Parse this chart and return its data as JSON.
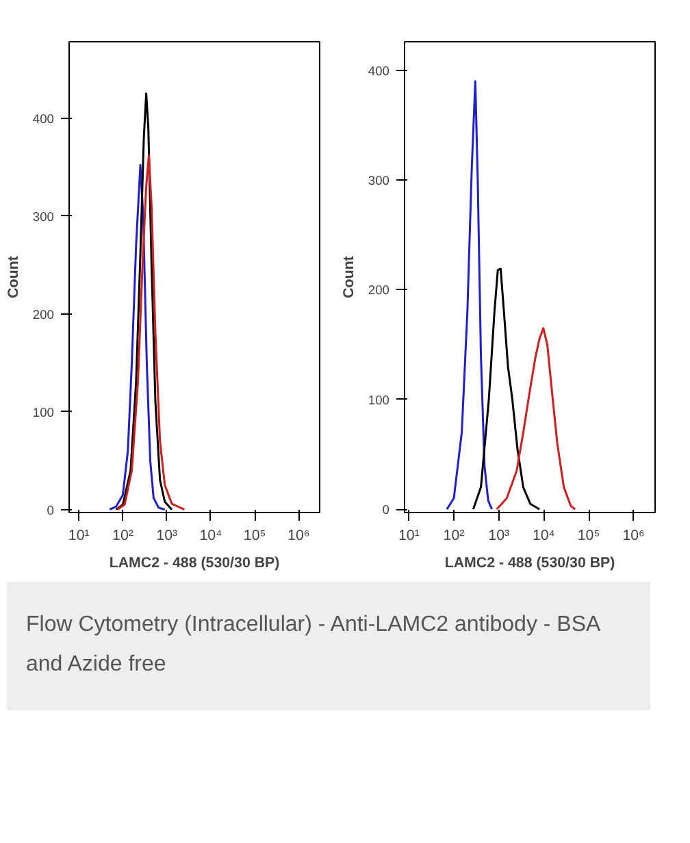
{
  "chart_data": [
    {
      "type": "line",
      "xlabel": "LAMC2 - 488 (530/30 BP)",
      "ylabel": "Count",
      "log": "x",
      "xlim": [
        6,
        3000000
      ],
      "ylim": [
        -3,
        478
      ],
      "xticks": [
        {
          "value": 10,
          "label": "10¹"
        },
        {
          "value": 100,
          "label": "10²"
        },
        {
          "value": 1000,
          "label": "10³"
        },
        {
          "value": 10000,
          "label": "10⁴"
        },
        {
          "value": 100000,
          "label": "10⁵"
        },
        {
          "value": 1000000,
          "label": "10⁶"
        }
      ],
      "yticks": [
        0,
        100,
        200,
        300,
        400
      ],
      "grid": false,
      "annotations": [
        "Flow Cytometry (Intracellular) - Anti-LAMC2 antibody - BSA and Azide free"
      ],
      "series": [
        {
          "color": "#1f1fd0",
          "x": [
            50,
            70,
            100,
            130,
            160,
            200,
            250,
            290,
            350,
            420,
            500,
            650,
            900
          ],
          "values": [
            0,
            3,
            15,
            60,
            150,
            270,
            352,
            300,
            150,
            50,
            12,
            2,
            0
          ]
        },
        {
          "color": "#000000",
          "x": [
            70,
            100,
            150,
            200,
            250,
            300,
            340,
            380,
            450,
            550,
            700,
            900,
            1300
          ],
          "values": [
            0,
            5,
            40,
            130,
            260,
            380,
            425,
            390,
            250,
            110,
            30,
            8,
            0
          ]
        },
        {
          "color": "#d01f1f",
          "x": [
            75,
            110,
            160,
            220,
            280,
            340,
            390,
            450,
            550,
            700,
            900,
            1300,
            2500
          ],
          "values": [
            0,
            5,
            40,
            130,
            250,
            330,
            362,
            310,
            180,
            70,
            25,
            6,
            0
          ]
        }
      ]
    },
    {
      "type": "line",
      "xlabel": "LAMC2 - 488 (530/30 BP)",
      "ylabel": "Count",
      "log": "x",
      "xlim": [
        8,
        3000000
      ],
      "ylim": [
        -3,
        426
      ],
      "xticks": [
        {
          "value": 10,
          "label": "10¹"
        },
        {
          "value": 100,
          "label": "10²"
        },
        {
          "value": 1000,
          "label": "10³"
        },
        {
          "value": 10000,
          "label": "10⁴"
        },
        {
          "value": 100000,
          "label": "10⁵"
        },
        {
          "value": 1000000,
          "label": "10⁶"
        }
      ],
      "yticks": [
        0,
        100,
        200,
        300,
        400
      ],
      "grid": false,
      "series": [
        {
          "color": "#1f1fd0",
          "x": [
            70,
            100,
            150,
            200,
            250,
            300,
            340,
            400,
            480,
            580,
            700
          ],
          "values": [
            0,
            10,
            70,
            180,
            310,
            390,
            300,
            140,
            40,
            8,
            0
          ]
        },
        {
          "color": "#000000",
          "x": [
            270,
            400,
            600,
            800,
            950,
            1100,
            1300,
            1600,
            2000,
            2600,
            3500,
            5000,
            8000
          ],
          "values": [
            0,
            20,
            100,
            180,
            218,
            219,
            180,
            130,
            100,
            55,
            20,
            5,
            0
          ]
        },
        {
          "color": "#d01f1f",
          "x": [
            900,
            1500,
            2500,
            3500,
            5000,
            6500,
            8000,
            9800,
            12000,
            15000,
            20000,
            28000,
            40000,
            50000
          ],
          "values": [
            0,
            10,
            35,
            70,
            110,
            138,
            155,
            165,
            150,
            110,
            60,
            20,
            3,
            0
          ]
        }
      ]
    }
  ]
}
